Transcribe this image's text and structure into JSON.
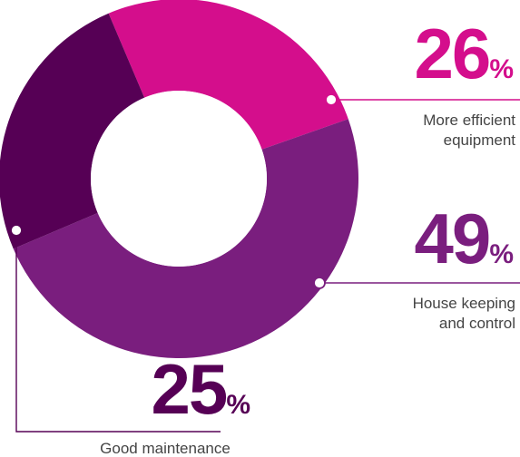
{
  "chart_data": {
    "type": "pie",
    "categories": [
      "More efficient equipment",
      "House keeping and control",
      "Good maintenance"
    ],
    "values": [
      26,
      49,
      25
    ],
    "unit": "%",
    "colors": [
      "#d40e8c",
      "#7a1e7e",
      "#560055"
    ],
    "labels": [
      {
        "value": "26",
        "symbol": "%",
        "line1": "More efficient",
        "line2": "equipment"
      },
      {
        "value": "49",
        "symbol": "%",
        "line1": "House keeping",
        "line2": "and control"
      },
      {
        "value": "25",
        "symbol": "%",
        "line1": "Good maintenance",
        "line2": ""
      }
    ]
  }
}
